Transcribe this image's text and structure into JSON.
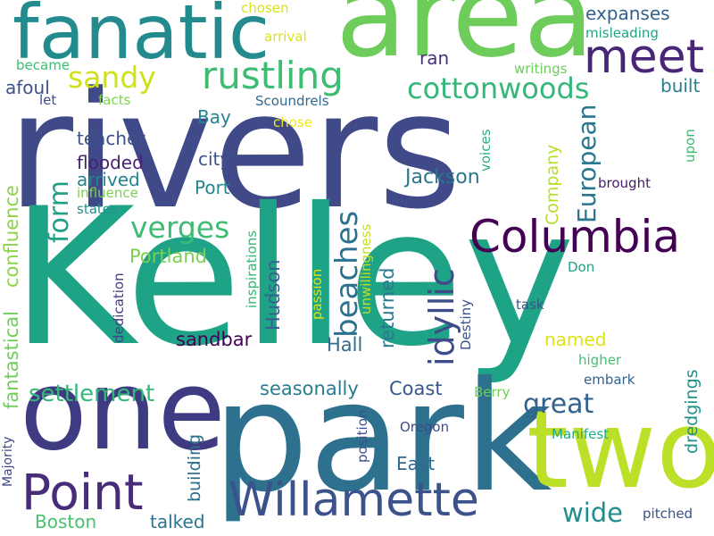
{
  "words": [
    {
      "text": "rivers",
      "color": "#404a89",
      "size": "huge",
      "vertical": false
    },
    {
      "text": "Kelley",
      "color": "#1ea386",
      "size": "huge",
      "vertical": false
    },
    {
      "text": "park",
      "color": "#2d718e",
      "size": "xl",
      "vertical": false
    },
    {
      "text": "area",
      "color": "#6ecd5a",
      "size": "xl",
      "vertical": false
    },
    {
      "text": "one",
      "color": "#3f3b83",
      "size": "xl",
      "vertical": false
    },
    {
      "text": "two",
      "color": "#bcdf27",
      "size": "xl",
      "vertical": false
    },
    {
      "text": "fanatic",
      "color": "#238a8d",
      "size": "l",
      "vertical": false
    },
    {
      "text": "Columbia",
      "color": "#440154",
      "size": "m",
      "vertical": false
    },
    {
      "text": "Willamette",
      "color": "#3b528b",
      "size": "m",
      "vertical": false
    },
    {
      "text": "Point",
      "color": "#472c7a",
      "size": "m",
      "vertical": false
    },
    {
      "text": "meet",
      "color": "#482576",
      "size": "m",
      "vertical": false
    },
    {
      "text": "rustling",
      "color": "#3dbc74",
      "size": "m",
      "vertical": false
    },
    {
      "text": "cottonwoods",
      "color": "#35b779",
      "size": "m",
      "vertical": false
    },
    {
      "text": "sandy",
      "color": "#d0e11c",
      "size": "s",
      "vertical": false
    },
    {
      "text": "expanses",
      "color": "#355f8d",
      "size": "s",
      "vertical": false
    },
    {
      "text": "verges",
      "color": "#3fbc73",
      "size": "s",
      "vertical": false
    },
    {
      "text": "settlement",
      "color": "#35b779",
      "size": "s",
      "vertical": false
    },
    {
      "text": "great",
      "color": "#33638d",
      "size": "s",
      "vertical": false
    },
    {
      "text": "European",
      "color": "#2a778e",
      "size": "s",
      "vertical": true
    },
    {
      "text": "beaches",
      "color": "#2c728e",
      "size": "s",
      "vertical": true
    },
    {
      "text": "idyllic",
      "color": "#3e4c8a",
      "size": "s",
      "vertical": true
    },
    {
      "text": "form",
      "color": "#1fa187",
      "size": "s",
      "vertical": true
    },
    {
      "text": "wide",
      "color": "#228d8d",
      "size": "s",
      "vertical": false
    },
    {
      "text": "Jackson",
      "color": "#2a768e",
      "size": "xs",
      "vertical": false
    },
    {
      "text": "Portland",
      "color": "#7ad151",
      "size": "xs",
      "vertical": false
    },
    {
      "text": "sandbar",
      "color": "#440154",
      "size": "xs",
      "vertical": false
    },
    {
      "text": "seasonally",
      "color": "#287c8e",
      "size": "xs",
      "vertical": false
    },
    {
      "text": "Coast",
      "color": "#38588c",
      "size": "xs",
      "vertical": false
    },
    {
      "text": "Hall",
      "color": "#2f6c8e",
      "size": "xs",
      "vertical": false
    },
    {
      "text": "named",
      "color": "#dde318",
      "size": "xs",
      "vertical": false
    },
    {
      "text": "East",
      "color": "#31688e",
      "size": "xs",
      "vertical": false
    },
    {
      "text": "Boston",
      "color": "#4ac16d",
      "size": "xs",
      "vertical": false
    },
    {
      "text": "talked",
      "color": "#2b758e",
      "size": "xs",
      "vertical": false
    },
    {
      "text": "teacher",
      "color": "#3b528b",
      "size": "xs",
      "vertical": false
    },
    {
      "text": "flooded",
      "color": "#482173",
      "size": "xs",
      "vertical": false
    },
    {
      "text": "arrived",
      "color": "#25848e",
      "size": "xs",
      "vertical": false
    },
    {
      "text": "city",
      "color": "#3b528b",
      "size": "xs",
      "vertical": false
    },
    {
      "text": "Port",
      "color": "#25858e",
      "size": "xs",
      "vertical": false
    },
    {
      "text": "Bay",
      "color": "#26828e",
      "size": "xs",
      "vertical": false
    },
    {
      "text": "afoul",
      "color": "#3b528b",
      "size": "xs",
      "vertical": false
    },
    {
      "text": "built",
      "color": "#287d8e",
      "size": "xs",
      "vertical": false
    },
    {
      "text": "ran",
      "color": "#46327e",
      "size": "xs",
      "vertical": false
    },
    {
      "text": "Hudson",
      "color": "#33638d",
      "size": "xs",
      "vertical": true
    },
    {
      "text": "returned",
      "color": "#2a788e",
      "size": "xs",
      "vertical": true
    },
    {
      "text": "building",
      "color": "#2d708e",
      "size": "xs",
      "vertical": true
    },
    {
      "text": "dredgings",
      "color": "#21918c",
      "size": "xs",
      "vertical": true
    },
    {
      "text": "Company",
      "color": "#b5de2b",
      "size": "xs",
      "vertical": true
    },
    {
      "text": "fantastical",
      "color": "#6ece58",
      "size": "xs",
      "vertical": true
    },
    {
      "text": "confluence",
      "color": "#8bd646",
      "size": "xs",
      "vertical": true
    },
    {
      "text": "Scoundrels",
      "color": "#31688e",
      "size": "xxs",
      "vertical": false
    },
    {
      "text": "brought",
      "color": "#481b6d",
      "size": "xxs",
      "vertical": false
    },
    {
      "text": "influence",
      "color": "#77d153",
      "size": "xxs",
      "vertical": false
    },
    {
      "text": "states",
      "color": "#21918c",
      "size": "xxs",
      "vertical": false
    },
    {
      "text": "chosen",
      "color": "#d8e219",
      "size": "xxs",
      "vertical": false
    },
    {
      "text": "arrival",
      "color": "#dde318",
      "size": "xxs",
      "vertical": false
    },
    {
      "text": "misleading",
      "color": "#20a386",
      "size": "xxs",
      "vertical": false
    },
    {
      "text": "writings",
      "color": "#6ccd5a",
      "size": "xxs",
      "vertical": false
    },
    {
      "text": "became",
      "color": "#3dbc74",
      "size": "xxs",
      "vertical": false
    },
    {
      "text": "let",
      "color": "#3e4c8a",
      "size": "xxs",
      "vertical": false
    },
    {
      "text": "facts",
      "color": "#7fd34e",
      "size": "xxs",
      "vertical": false
    },
    {
      "text": "chose",
      "color": "#f1e51d",
      "size": "xxs",
      "vertical": false
    },
    {
      "text": "Don",
      "color": "#20a386",
      "size": "xxs",
      "vertical": false
    },
    {
      "text": "task",
      "color": "#3b528b",
      "size": "xxs",
      "vertical": false
    },
    {
      "text": "higher",
      "color": "#44bf70",
      "size": "xxs",
      "vertical": false
    },
    {
      "text": "embark",
      "color": "#33638d",
      "size": "xxs",
      "vertical": false
    },
    {
      "text": "Berry",
      "color": "#6ece58",
      "size": "xxs",
      "vertical": false
    },
    {
      "text": "Oregon",
      "color": "#3e4a89",
      "size": "xxs",
      "vertical": false
    },
    {
      "text": "Manifest",
      "color": "#22a884",
      "size": "xxs",
      "vertical": false
    },
    {
      "text": "pitched",
      "color": "#3b528b",
      "size": "xxs",
      "vertical": false
    },
    {
      "text": "voices",
      "color": "#2ab07f",
      "size": "xxs",
      "vertical": true
    },
    {
      "text": "upon",
      "color": "#3dbc74",
      "size": "xxs",
      "vertical": true
    },
    {
      "text": "inspirations",
      "color": "#35b779",
      "size": "xxs",
      "vertical": true
    },
    {
      "text": "unwillingness",
      "color": "#c2df23",
      "size": "xxs",
      "vertical": true
    },
    {
      "text": "passion",
      "color": "#dde318",
      "size": "xxs",
      "vertical": true
    },
    {
      "text": "dedication",
      "color": "#433e85",
      "size": "xxs",
      "vertical": true
    },
    {
      "text": "Destiny",
      "color": "#3b528b",
      "size": "xxs",
      "vertical": true
    },
    {
      "text": "position",
      "color": "#3b528b",
      "size": "xxs",
      "vertical": true
    },
    {
      "text": "Majority",
      "color": "#3e4989",
      "size": "xxs",
      "vertical": true
    }
  ]
}
